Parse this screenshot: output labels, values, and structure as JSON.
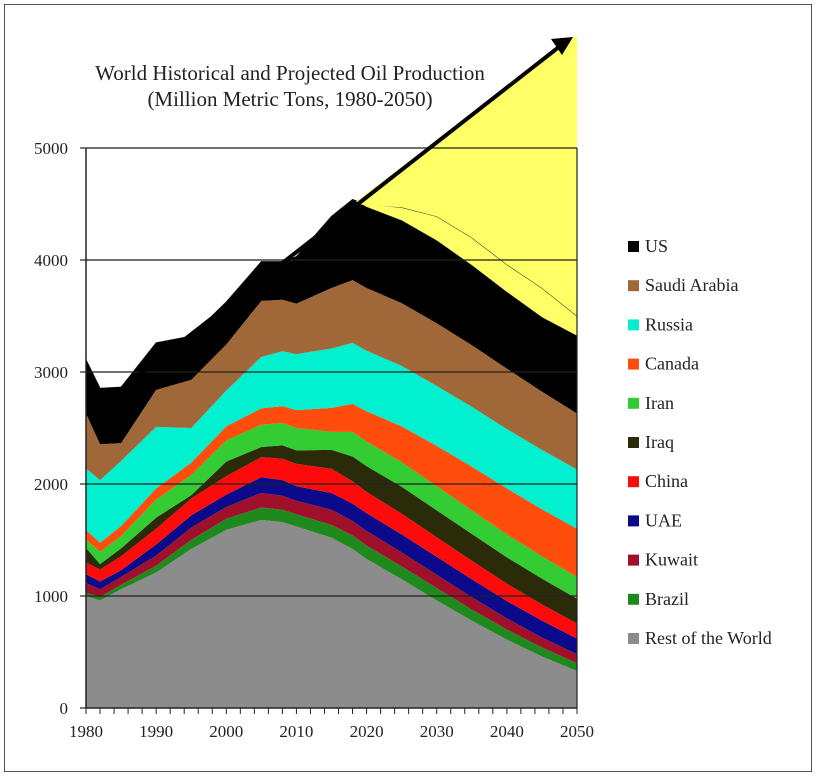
{
  "chart_data": {
    "type": "area",
    "stacked": true,
    "title": "World Historical and Projected Oil Production",
    "subtitle": "(Million Metric Tons, 1980-2050)",
    "xlabel": "",
    "ylabel": "",
    "x": [
      1980,
      1982,
      1985,
      1990,
      1995,
      2000,
      2005,
      2008,
      2010,
      2015,
      2018,
      2020,
      2025,
      2030,
      2035,
      2040,
      2045,
      2050
    ],
    "xlim": [
      1980,
      2050
    ],
    "ylim": [
      0,
      5000
    ],
    "xticks": [
      "1980",
      "1990",
      "2000",
      "2010",
      "2020",
      "2030",
      "2040",
      "2050"
    ],
    "yticks": [
      "0",
      "1000",
      "2000",
      "3000",
      "4000",
      "5000"
    ],
    "grid": "horizontal",
    "legend_position": "right",
    "series": [
      {
        "name": "Rest of the World",
        "color": "#8c8c8c",
        "values": [
          1000,
          960,
          1060,
          1210,
          1420,
          1590,
          1680,
          1660,
          1620,
          1520,
          1420,
          1330,
          1150,
          960,
          780,
          610,
          460,
          330
        ]
      },
      {
        "name": "Brazil",
        "color": "#1e8a1e",
        "values": [
          30,
          30,
          40,
          60,
          80,
          100,
          110,
          110,
          110,
          115,
          120,
          120,
          115,
          110,
          100,
          90,
          80,
          70
        ]
      },
      {
        "name": "Kuwait",
        "color": "#a0102a",
        "values": [
          85,
          70,
          70,
          90,
          110,
          105,
          130,
          125,
          120,
          135,
          130,
          130,
          125,
          120,
          110,
          100,
          90,
          80
        ]
      },
      {
        "name": "UAE",
        "color": "#0a0a8a",
        "values": [
          80,
          70,
          60,
          100,
          110,
          110,
          140,
          140,
          130,
          150,
          155,
          160,
          160,
          160,
          160,
          155,
          150,
          140
        ]
      },
      {
        "name": "China",
        "color": "#ff0a0a",
        "values": [
          105,
          105,
          125,
          140,
          150,
          165,
          180,
          190,
          200,
          215,
          200,
          190,
          185,
          175,
          165,
          155,
          145,
          135
        ]
      },
      {
        "name": "Iraq",
        "color": "#2b2b0a",
        "values": [
          130,
          50,
          70,
          100,
          30,
          130,
          90,
          120,
          120,
          170,
          220,
          230,
          240,
          240,
          240,
          235,
          230,
          220
        ]
      },
      {
        "name": "Iran",
        "color": "#33cc33",
        "values": [
          75,
          110,
          110,
          160,
          180,
          190,
          200,
          200,
          200,
          160,
          220,
          220,
          220,
          215,
          210,
          205,
          200,
          195
        ]
      },
      {
        "name": "Canada",
        "color": "#ff4d0d",
        "values": [
          85,
          80,
          90,
          100,
          110,
          125,
          145,
          150,
          160,
          215,
          250,
          270,
          320,
          360,
          390,
          410,
          420,
          430
        ]
      },
      {
        "name": "Russia",
        "color": "#00f0d0",
        "values": [
          550,
          560,
          580,
          550,
          310,
          320,
          460,
          490,
          500,
          530,
          545,
          540,
          540,
          535,
          535,
          530,
          530,
          530
        ]
      },
      {
        "name": "Saudi Arabia",
        "color": "#a06838",
        "values": [
          490,
          320,
          160,
          330,
          430,
          410,
          500,
          460,
          450,
          540,
          560,
          560,
          560,
          560,
          550,
          540,
          520,
          500
        ]
      },
      {
        "name": "US",
        "color": "#000000",
        "values": [
          480,
          500,
          500,
          420,
          390,
          380,
          350,
          340,
          420,
          640,
          720,
          720,
          735,
          735,
          710,
          680,
          660,
          690
        ]
      }
    ],
    "trend_upper": {
      "color": "#ffff66",
      "values": [
        2800,
        2800,
        2800,
        2800,
        2800,
        2800,
        2800,
        2800,
        2800,
        2800,
        4500,
        4500,
        4470,
        4390,
        4200,
        3960,
        3750,
        3500
      ]
    },
    "trend_arrow": {
      "from": [
        1983,
        2750
      ],
      "to": [
        2050,
        5930
      ]
    }
  }
}
